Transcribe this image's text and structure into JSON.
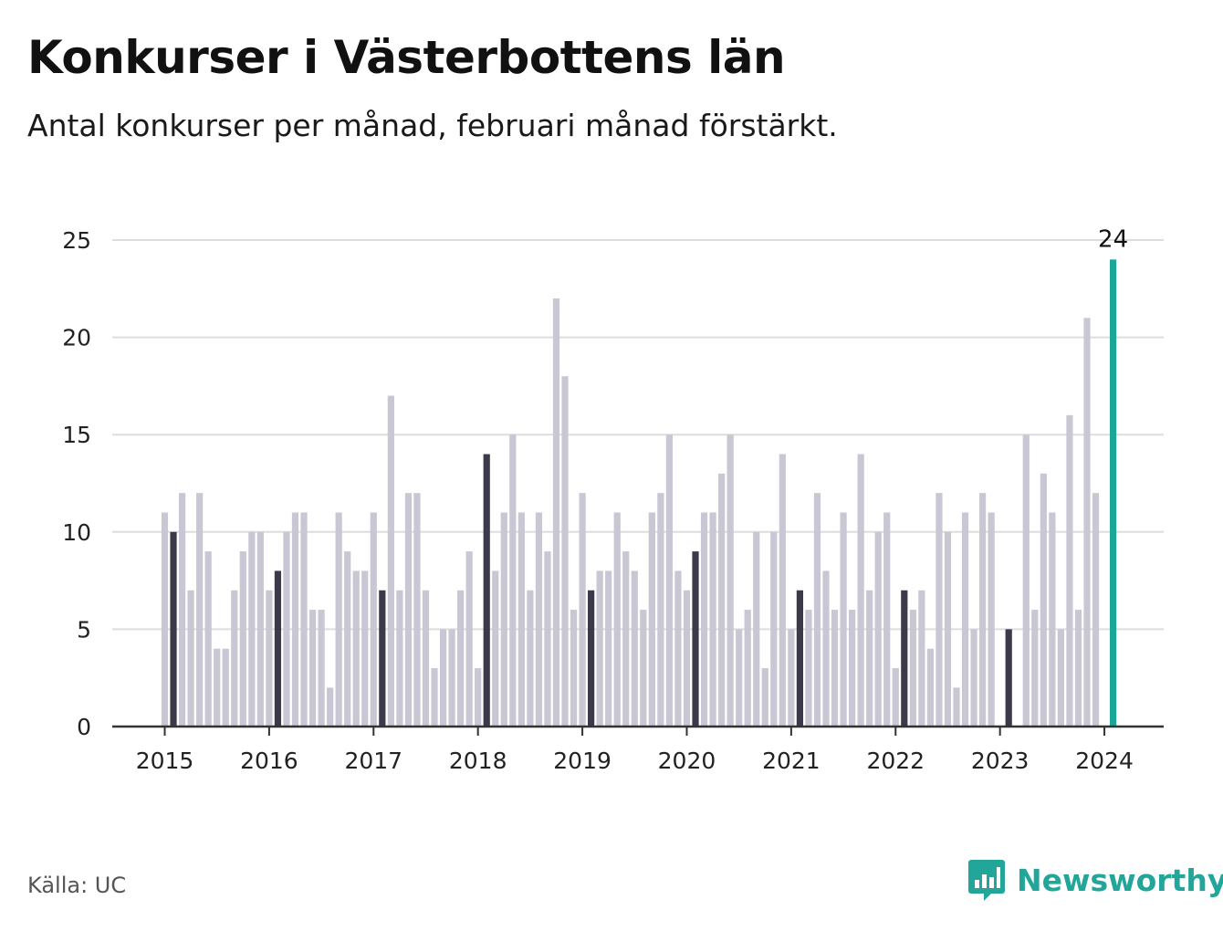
{
  "title": "Konkurser i Västerbottens län",
  "subtitle": "Antal konkurser per månad, februari månad förstärkt.",
  "source": "Källa: UC",
  "brand": "Newsworthy",
  "colors": {
    "bar": "#c8c7d3",
    "highlight": "#3c3a4a",
    "latest": "#1aa797",
    "grid": "#dddddd",
    "axis": "#333333",
    "brand": "#22a69a"
  },
  "chart_data": {
    "type": "bar",
    "title": "Konkurser i Västerbottens län",
    "subtitle": "Antal konkurser per månad, februari månad förstärkt.",
    "xlabel": "",
    "ylabel": "",
    "ylim": [
      0,
      25
    ],
    "yticks": [
      0,
      5,
      10,
      15,
      20,
      25
    ],
    "xticks": [
      "2015",
      "2016",
      "2017",
      "2018",
      "2019",
      "2020",
      "2021",
      "2022",
      "2023",
      "2024"
    ],
    "grid": true,
    "start": "2015-01",
    "highlight_month": "February",
    "latest_label": "24",
    "values": [
      11,
      10,
      12,
      7,
      12,
      9,
      4,
      4,
      7,
      9,
      10,
      10,
      7,
      8,
      10,
      11,
      11,
      6,
      6,
      2,
      11,
      9,
      8,
      8,
      11,
      7,
      17,
      7,
      12,
      12,
      7,
      3,
      5,
      5,
      7,
      9,
      3,
      14,
      8,
      11,
      15,
      11,
      7,
      11,
      9,
      22,
      18,
      6,
      12,
      7,
      8,
      8,
      11,
      9,
      8,
      6,
      11,
      12,
      15,
      8,
      7,
      9,
      11,
      11,
      13,
      15,
      5,
      6,
      10,
      3,
      10,
      14,
      5,
      7,
      6,
      12,
      8,
      6,
      11,
      6,
      14,
      7,
      10,
      11,
      3,
      7,
      6,
      7,
      4,
      12,
      10,
      2,
      11,
      5,
      12,
      11,
      null,
      5,
      null,
      15,
      6,
      13,
      11,
      5,
      16,
      6,
      21,
      12,
      null,
      24
    ]
  }
}
